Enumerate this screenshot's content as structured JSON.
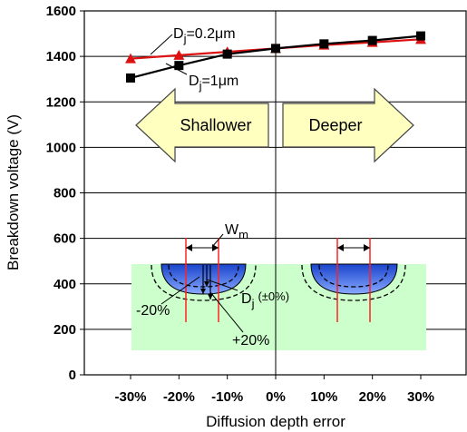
{
  "chart_data": {
    "type": "line",
    "xlabel": "Diffusion depth error",
    "ylabel": "Breakdown voltage (V)",
    "x": [
      -30,
      -20,
      -10,
      0,
      10,
      20,
      30
    ],
    "x_tick_labels": [
      "-30%",
      "-20%",
      "-10%",
      "0%",
      "10%",
      "20%",
      "30%"
    ],
    "ylim": [
      0,
      1600
    ],
    "y_ticks": [
      0,
      200,
      400,
      600,
      800,
      1000,
      1200,
      1400,
      1600
    ],
    "y_tick_labels": [
      "0",
      "200",
      "400",
      "600",
      "800",
      "1000",
      "1200",
      "1400",
      "1600"
    ],
    "grid": "horizontal major",
    "series": [
      {
        "name": "Dj=0.2μm",
        "label_main": "D",
        "label_sub": "j",
        "label_rest": "=0.2μm",
        "color": "#dd1111",
        "marker": "triangle",
        "values": [
          1390,
          1405,
          1420,
          1435,
          1450,
          1462,
          1475
        ]
      },
      {
        "name": "Dj=1μm",
        "label_main": "D",
        "label_sub": "j",
        "label_rest": "=1μm",
        "color": "#000000",
        "marker": "square",
        "values": [
          1305,
          1360,
          1410,
          1435,
          1455,
          1470,
          1490
        ]
      }
    ],
    "annotations": {
      "shallower": "Shallower",
      "deeper": "Deeper",
      "wm_main": "W",
      "wm_sub": "m",
      "dj_main": "D",
      "dj_sub": "j",
      "dj_rest": "(±0%)",
      "minus20": "-20%",
      "plus20": "+20%"
    },
    "colors": {
      "arrow_fill": "#ffffc0",
      "inset_background": "#ccffcc",
      "junction_fill": "#3366dd",
      "marker_line": "#ff2222"
    }
  }
}
